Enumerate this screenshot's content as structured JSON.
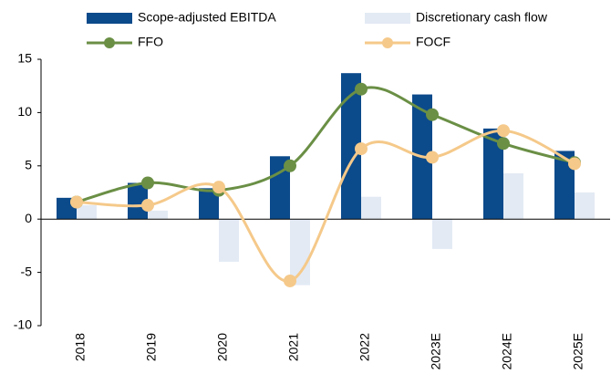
{
  "chart_data": {
    "type": "bar-line",
    "categories": [
      "2018",
      "2019",
      "2020",
      "2021",
      "2022",
      "2023E",
      "2024E",
      "2025E"
    ],
    "series": [
      {
        "name": "Scope-adjusted EBITDA",
        "type": "bar",
        "color": "#0b4a8b",
        "values": [
          2.0,
          3.4,
          2.9,
          5.9,
          13.7,
          11.7,
          8.5,
          6.4
        ]
      },
      {
        "name": "Discretionary cash flow",
        "type": "bar",
        "color": "#e3eaf4",
        "values": [
          1.3,
          0.8,
          -4.0,
          -6.2,
          2.1,
          -2.8,
          4.3,
          2.5
        ]
      },
      {
        "name": "FFO",
        "type": "line",
        "color": "#6a8f45",
        "values": [
          1.6,
          3.4,
          2.7,
          5.0,
          12.2,
          9.8,
          7.1,
          5.3
        ]
      },
      {
        "name": "FOCF",
        "type": "line",
        "color": "#f5c98a",
        "values": [
          1.6,
          1.3,
          3.0,
          -5.8,
          6.6,
          5.8,
          8.3,
          5.2
        ]
      }
    ],
    "ylim": [
      -10,
      15
    ],
    "yticks": [
      -10,
      -5,
      0,
      5,
      10,
      15
    ]
  }
}
